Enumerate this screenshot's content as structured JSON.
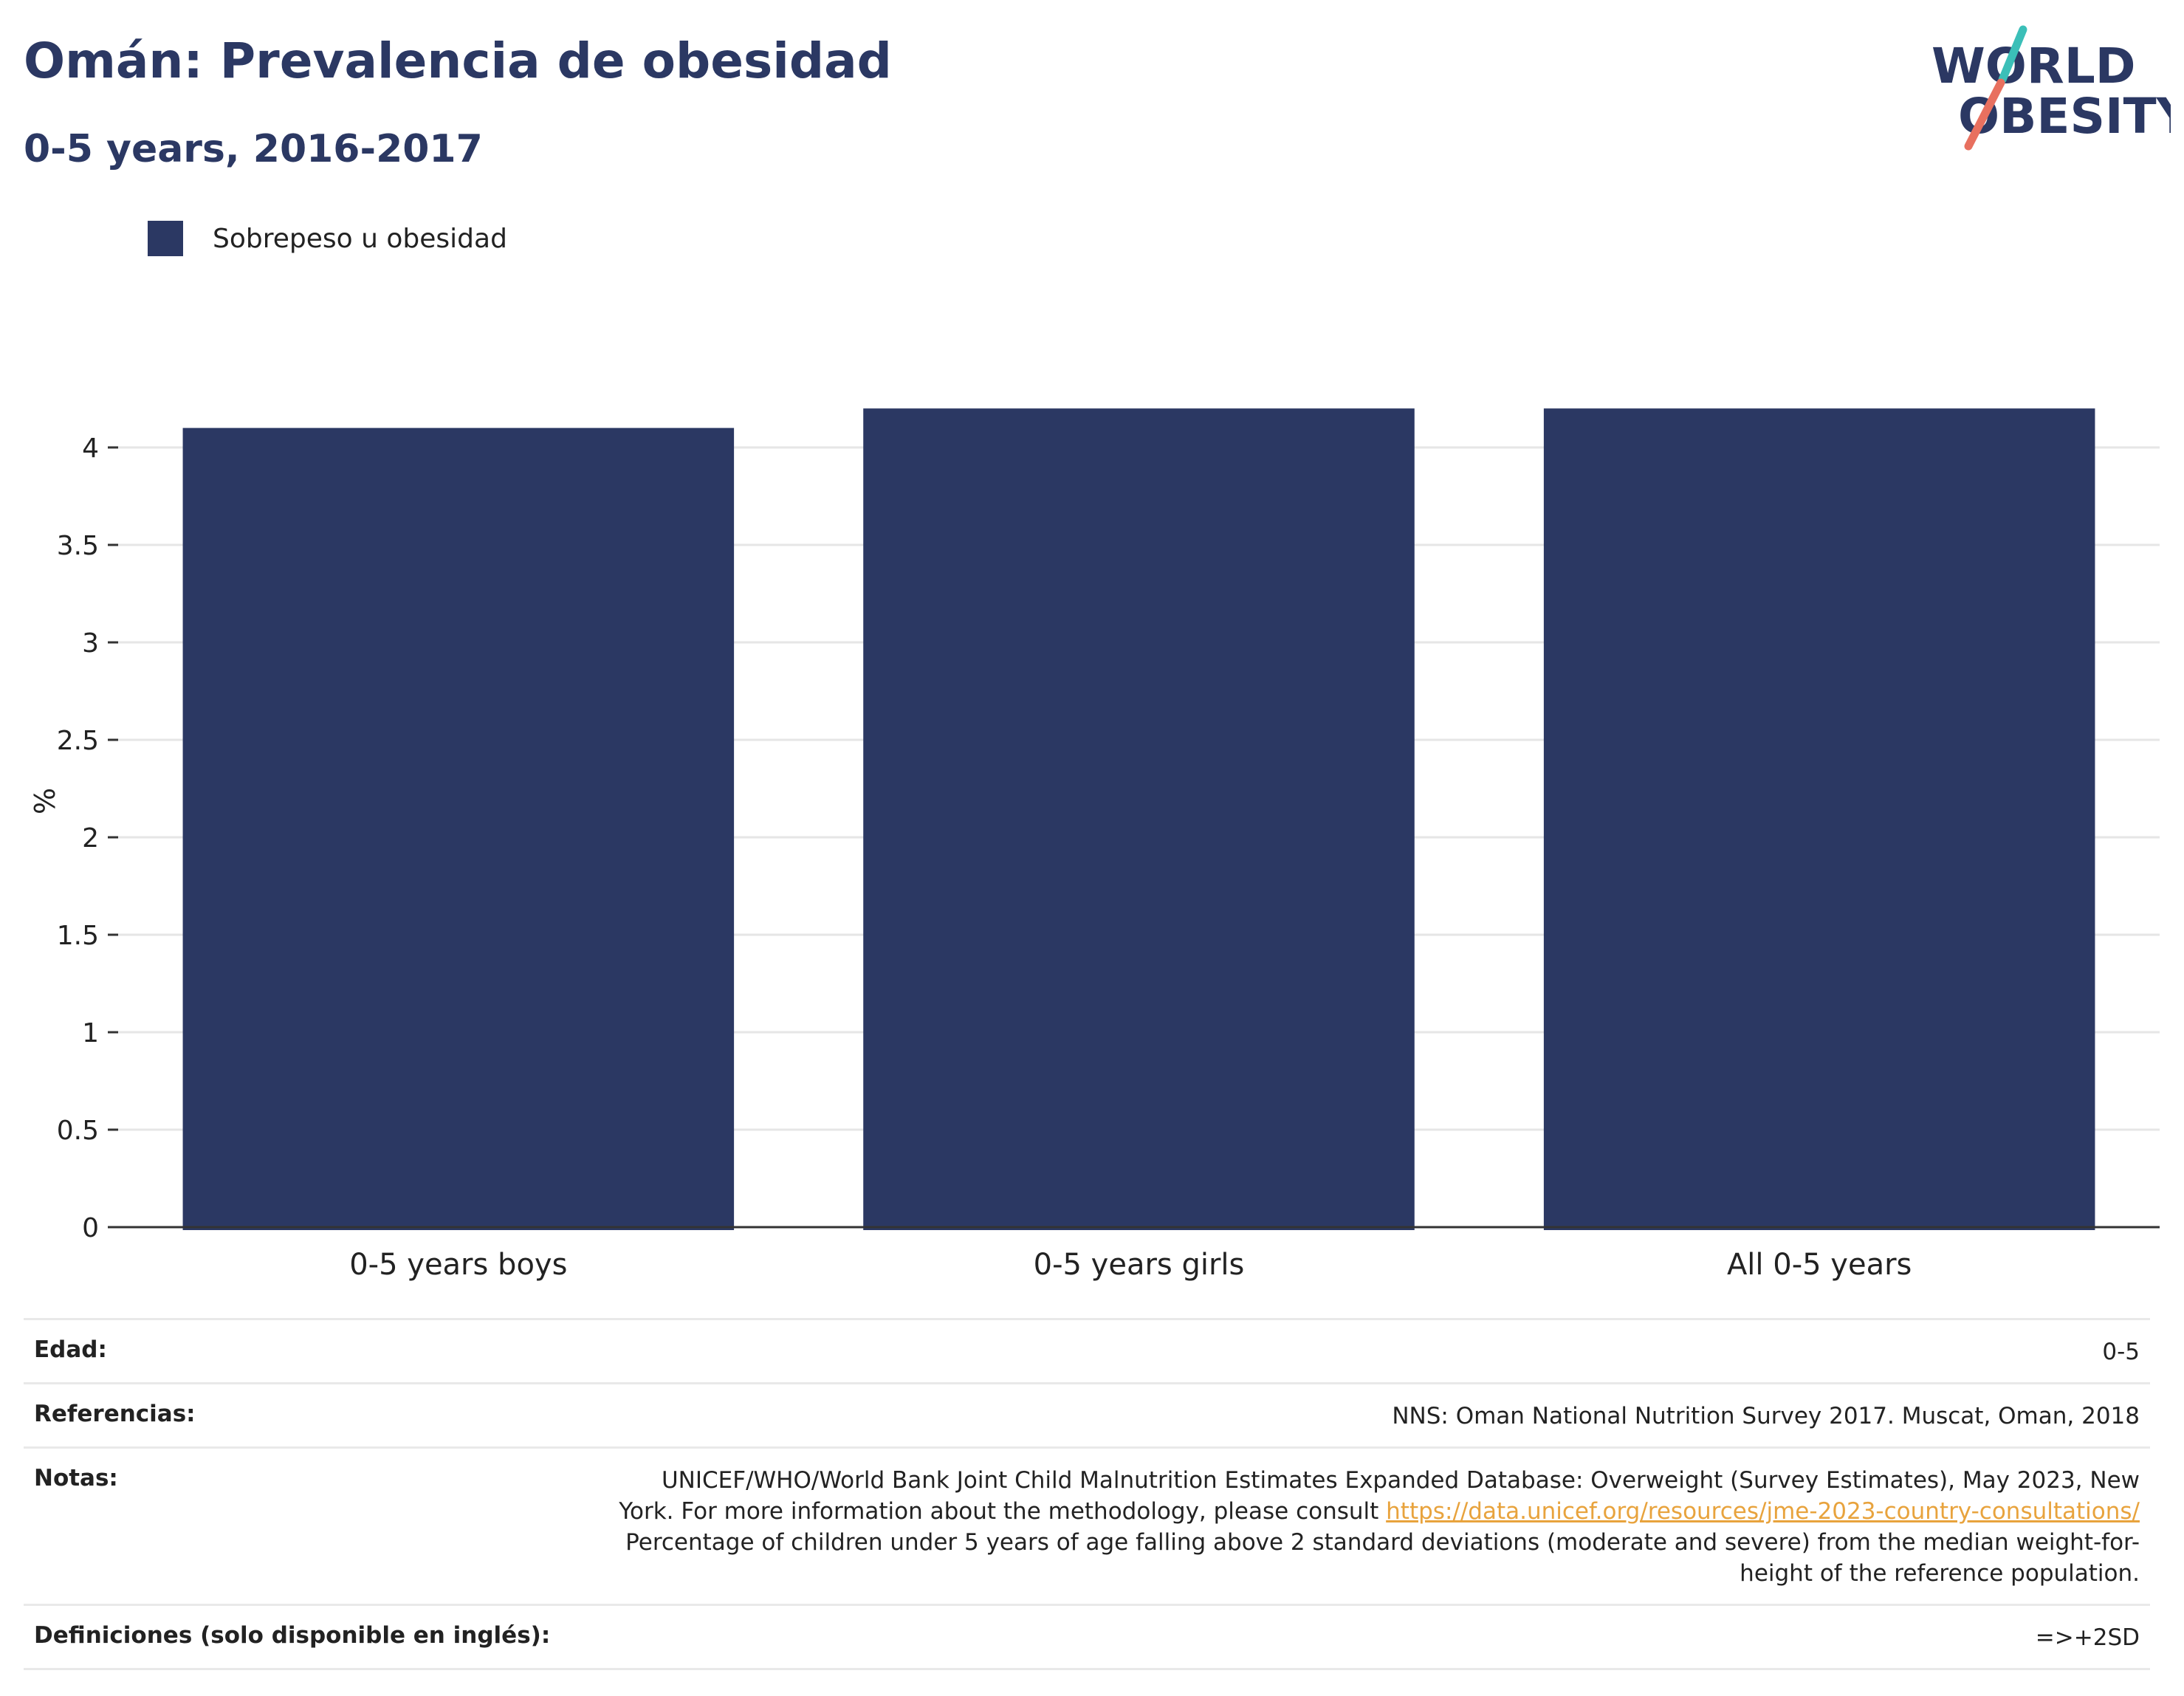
{
  "header": {
    "title": "Omán: Prevalencia de obesidad",
    "subtitle": "0-5 years, 2016-2017"
  },
  "logo": {
    "line1": "WORLD",
    "line2": "OBESITY",
    "accent_teal": "#3bbfb8",
    "accent_coral": "#e8705f",
    "text_color": "#2b3863"
  },
  "chart_data": {
    "type": "bar",
    "categories": [
      "0-5 years boys",
      "0-5 years girls",
      "All 0-5 years"
    ],
    "series": [
      {
        "name": "Sobrepeso u obesidad",
        "values": [
          4.1,
          4.2,
          4.2
        ],
        "color": "#2b3863"
      }
    ],
    "ylabel": "%",
    "ylim": [
      0,
      4.25
    ],
    "yticks": [
      "0",
      "0.5",
      "1",
      "1.5",
      "2",
      "2.5",
      "3",
      "3.5",
      "4"
    ],
    "grid": true,
    "legend_position": "top-left"
  },
  "meta": {
    "age_label": "Edad:",
    "age_value": "0-5",
    "references_label": "Referencias:",
    "references_value": "NNS: Oman National Nutrition Survey 2017. Muscat, Oman, 2018",
    "notes_label": "Notas:",
    "notes_line1": "UNICEF/WHO/World Bank Joint Child Malnutrition Estimates Expanded Database: Overweight (Survey Estimates), May 2023, New",
    "notes_line2_prefix": "York. For more information about the methodology, please consult ",
    "notes_link": "https://data.unicef.org/resources/jme-2023-country-consultations/",
    "notes_line3": "Percentage of children under 5 years of age falling above 2 standard deviations (moderate and severe) from the median weight-for-",
    "notes_line4": "height of the reference population.",
    "definitions_label": "Definiciones (solo disponible en inglés):",
    "definitions_value": "=>+2SD"
  }
}
